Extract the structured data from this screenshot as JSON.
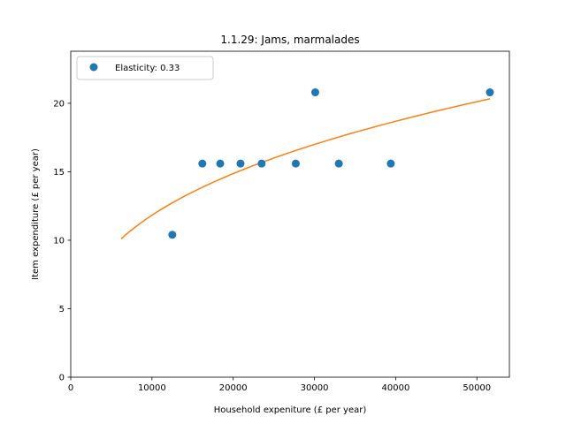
{
  "chart_data": {
    "type": "scatter",
    "title": "1.1.29: Jams, marmalades",
    "xlabel": "Household expeniture (£ per year)",
    "ylabel": "Item expenditure (£ per year)",
    "xlim": [
      0,
      54000
    ],
    "ylim": [
      0,
      23.8
    ],
    "x_ticks": [
      0,
      10000,
      20000,
      30000,
      40000,
      50000
    ],
    "y_ticks": [
      0,
      5,
      10,
      15,
      20
    ],
    "legend": {
      "position": "top-left",
      "label": "Elasticity: 0.33"
    },
    "grid": false,
    "series": [
      {
        "name": "Elasticity: 0.33",
        "kind": "points",
        "color": "#1f77b4",
        "x": [
          12500,
          16200,
          18400,
          20900,
          23500,
          27700,
          30100,
          33000,
          39400,
          51600
        ],
        "y": [
          10.4,
          15.6,
          15.6,
          15.6,
          15.6,
          15.6,
          20.8,
          15.6,
          15.6,
          20.8
        ]
      },
      {
        "kind": "line",
        "color": "#ff7f0e",
        "x_start": 6200,
        "x_end": 51600,
        "y_start": 10.1,
        "exponent": 0.33
      }
    ]
  }
}
